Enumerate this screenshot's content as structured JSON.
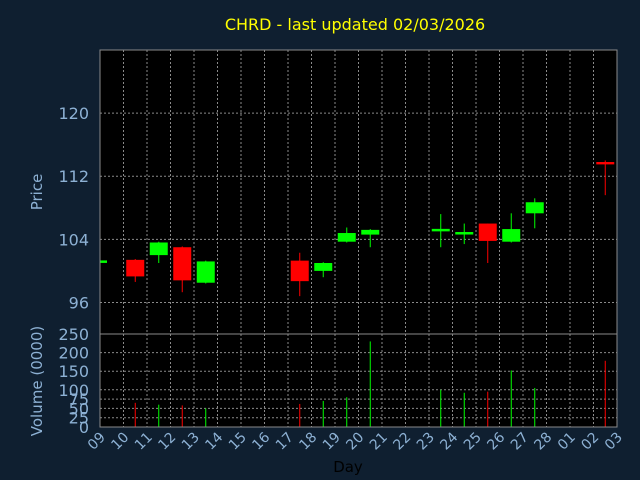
{
  "chart_data": {
    "type": "candlestick",
    "title": "CHRD - last updated 02/03/2026",
    "xlabel": "Day",
    "price_panel": {
      "ylabel": "Price",
      "ylim": [
        92,
        128
      ],
      "yticks": [
        96,
        104,
        112,
        120
      ],
      "grid": true
    },
    "volume_panel": {
      "ylabel": "Volume (0000)",
      "ylim": [
        0,
        250
      ],
      "yticks": [
        0,
        25,
        50,
        75,
        100,
        150,
        200,
        250
      ],
      "grid": true
    },
    "x_ticks": [
      "09",
      "10",
      "11",
      "12",
      "13",
      "14",
      "15",
      "16",
      "17",
      "18",
      "19",
      "20",
      "21",
      "22",
      "23",
      "24",
      "25",
      "26",
      "27",
      "28",
      "01",
      "02",
      "03"
    ],
    "candles": [
      {
        "day": "09",
        "open": 101.2,
        "close": 101.2,
        "high": 101.2,
        "low": 101.2,
        "volume": 0
      },
      {
        "day": "10",
        "open": 101.4,
        "close": 99.3,
        "high": 101.5,
        "low": 98.6,
        "volume": 65
      },
      {
        "day": "11",
        "open": 102.0,
        "close": 103.6,
        "high": 103.7,
        "low": 101.0,
        "volume": 60
      },
      {
        "day": "12",
        "open": 103.0,
        "close": 98.8,
        "high": 103.1,
        "low": 97.3,
        "volume": 58
      },
      {
        "day": "13",
        "open": 98.5,
        "close": 101.2,
        "high": 101.3,
        "low": 98.4,
        "volume": 50
      },
      {
        "day": "17",
        "open": 101.3,
        "close": 98.7,
        "high": 102.3,
        "low": 96.8,
        "volume": 62
      },
      {
        "day": "18",
        "open": 100.0,
        "close": 101.0,
        "high": 101.1,
        "low": 99.2,
        "volume": 70
      },
      {
        "day": "19",
        "open": 103.7,
        "close": 104.8,
        "high": 105.5,
        "low": 103.6,
        "volume": 80
      },
      {
        "day": "20",
        "open": 104.6,
        "close": 105.2,
        "high": 105.3,
        "low": 103.0,
        "volume": 230
      },
      {
        "day": "23",
        "open": 105.0,
        "close": 105.2,
        "high": 107.2,
        "low": 103.0,
        "volume": 100
      },
      {
        "day": "24",
        "open": 104.8,
        "close": 104.8,
        "high": 106.0,
        "low": 103.4,
        "volume": 92
      },
      {
        "day": "25",
        "open": 106.0,
        "close": 103.8,
        "high": 106.0,
        "low": 101.0,
        "volume": 95
      },
      {
        "day": "26",
        "open": 103.7,
        "close": 105.3,
        "high": 107.3,
        "low": 103.6,
        "volume": 152
      },
      {
        "day": "27",
        "open": 107.3,
        "close": 108.7,
        "high": 109.2,
        "low": 105.4,
        "volume": 105
      },
      {
        "day": "02",
        "open": 113.8,
        "close": 113.5,
        "high": 114.0,
        "low": 109.6,
        "volume": 178
      }
    ]
  },
  "colors": {
    "background": "#0f1f30",
    "plot": "#000000",
    "grid": "#8a8a8a",
    "title": "#ffff00",
    "axis_text": "#8db1d4",
    "label_dark": "#000000",
    "up": "#00ff00",
    "down": "#ff0000"
  }
}
